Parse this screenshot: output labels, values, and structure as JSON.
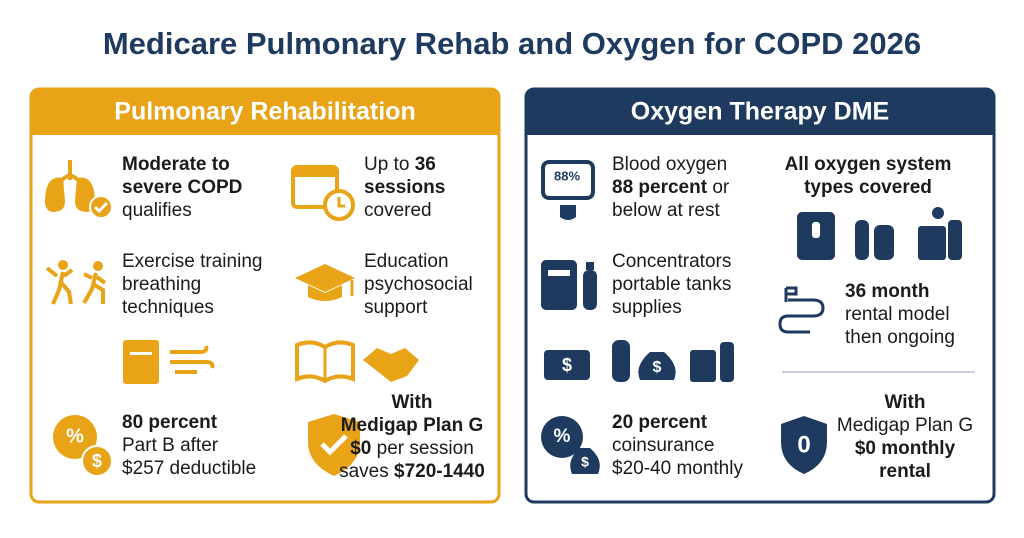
{
  "title": "Medicare Pulmonary Rehab and Oxygen for COPD 2026",
  "panels": [
    {
      "heading": "Pulmonary Rehabilitation",
      "items": [
        {
          "lines": [
            [
              {
                "text": "Moderate to",
                "bold": true
              }
            ],
            [
              {
                "text": "severe COPD",
                "bold": true
              }
            ],
            [
              {
                "text": "qualifies",
                "bold": false
              }
            ]
          ]
        },
        {
          "lines": [
            [
              {
                "text": "Up to ",
                "bold": false
              },
              {
                "text": "36",
                "bold": true
              }
            ],
            [
              {
                "text": "sessions",
                "bold": true
              }
            ],
            [
              {
                "text": "covered",
                "bold": false
              }
            ]
          ]
        },
        {
          "lines": [
            [
              {
                "text": "Exercise training",
                "bold": false
              }
            ],
            [
              {
                "text": "breathing",
                "bold": false
              }
            ],
            [
              {
                "text": "techniques",
                "bold": false
              }
            ]
          ]
        },
        {
          "lines": [
            [
              {
                "text": "Education",
                "bold": false
              }
            ],
            [
              {
                "text": "psychosocial",
                "bold": false
              }
            ],
            [
              {
                "text": "support",
                "bold": false
              }
            ]
          ]
        },
        {
          "lines": [
            [
              {
                "text": "80 percent",
                "bold": true
              }
            ],
            [
              {
                "text": "Part B after",
                "bold": false
              }
            ],
            [
              {
                "text": "$257 deductible",
                "bold": false
              }
            ]
          ]
        },
        {
          "lines": [
            [
              {
                "text": "With",
                "bold": true
              }
            ],
            [
              {
                "text": "Medigap Plan G",
                "bold": true
              }
            ],
            [
              {
                "text": "$0",
                "bold": true
              },
              {
                "text": " per session",
                "bold": false
              }
            ],
            [
              {
                "text": "saves ",
                "bold": false
              },
              {
                "text": "$720-1440",
                "bold": true
              }
            ]
          ]
        }
      ]
    },
    {
      "heading": "Oxygen Therapy DME",
      "items": [
        {
          "lines": [
            [
              {
                "text": "Blood oxygen",
                "bold": false
              }
            ],
            [
              {
                "text": "88 percent",
                "bold": true
              },
              {
                "text": " or",
                "bold": false
              }
            ],
            [
              {
                "text": "below at rest",
                "bold": false
              }
            ]
          ]
        },
        {
          "lines": [
            [
              {
                "text": "All oxygen system",
                "bold": true
              }
            ],
            [
              {
                "text": "types covered",
                "bold": true
              }
            ]
          ]
        },
        {
          "lines": [
            [
              {
                "text": "Concentrators",
                "bold": false
              }
            ],
            [
              {
                "text": "portable tanks",
                "bold": false
              }
            ],
            [
              {
                "text": "supplies",
                "bold": false
              }
            ]
          ]
        },
        {
          "lines": [
            [
              {
                "text": "36 month",
                "bold": true
              }
            ],
            [
              {
                "text": "rental model",
                "bold": false
              }
            ],
            [
              {
                "text": "then ongoing",
                "bold": false
              }
            ]
          ]
        },
        {
          "lines": [
            [
              {
                "text": "20 percent",
                "bold": true
              }
            ],
            [
              {
                "text": "coinsurance",
                "bold": false
              }
            ],
            [
              {
                "text": "$20-40 monthly",
                "bold": false
              }
            ]
          ]
        },
        {
          "lines": [
            [
              {
                "text": "With",
                "bold": true
              }
            ],
            [
              {
                "text": "Medigap Plan G",
                "bold": false
              }
            ],
            [
              {
                "text": "$0 monthly",
                "bold": true
              }
            ],
            [
              {
                "text": "rental",
                "bold": true
              }
            ]
          ]
        }
      ]
    }
  ],
  "icon_labels": {
    "oximeter": "88%",
    "shield": "0"
  }
}
